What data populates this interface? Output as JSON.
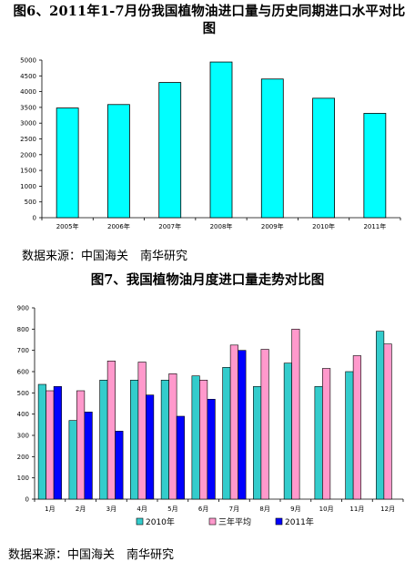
{
  "figure1": {
    "title": "图6、2011年1-7月份我国植物油进口量与历史同期进口水平对比图",
    "source": "数据来源：中国海关　南华研究",
    "chart_data": {
      "type": "bar",
      "categories": [
        "2005年",
        "2006年",
        "2007年",
        "2008年",
        "2009年",
        "2010年",
        "2011年"
      ],
      "values": [
        3480,
        3590,
        4290,
        4940,
        4400,
        3790,
        3310
      ],
      "ylim": [
        0,
        5000
      ],
      "yticks": [
        "0",
        "500",
        "1000",
        "1500",
        "2000",
        "2500",
        "3000",
        "3500",
        "4000",
        "4500",
        "5000"
      ],
      "bar_color": "#00FFFF",
      "grid": false,
      "legend": false
    }
  },
  "figure2": {
    "title": "图7、我国植物油月度进口量走势对比图",
    "source": "数据来源：中国海关　南华研究",
    "chart_data": {
      "type": "bar",
      "categories": [
        "1月",
        "2月",
        "3月",
        "4月",
        "5月",
        "6月",
        "7月",
        "8月",
        "9月",
        "10月",
        "11月",
        "12月"
      ],
      "series": [
        {
          "name": "2010年",
          "color": "#33CCCC",
          "values": [
            540,
            370,
            560,
            560,
            560,
            580,
            620,
            530,
            640,
            530,
            600,
            790
          ]
        },
        {
          "name": "三年平均",
          "color": "#FF99CC",
          "values": [
            510,
            510,
            650,
            645,
            590,
            560,
            725,
            705,
            800,
            615,
            675,
            730
          ]
        },
        {
          "name": "2011年",
          "color": "#0000FF",
          "values": [
            530,
            410,
            320,
            490,
            390,
            470,
            700,
            null,
            null,
            null,
            null,
            null
          ]
        }
      ],
      "ylim": [
        0,
        900
      ],
      "yticks": [
        "0",
        "100",
        "200",
        "300",
        "400",
        "500",
        "600",
        "700",
        "800",
        "900"
      ],
      "grid": false,
      "legend": "bottom"
    }
  }
}
